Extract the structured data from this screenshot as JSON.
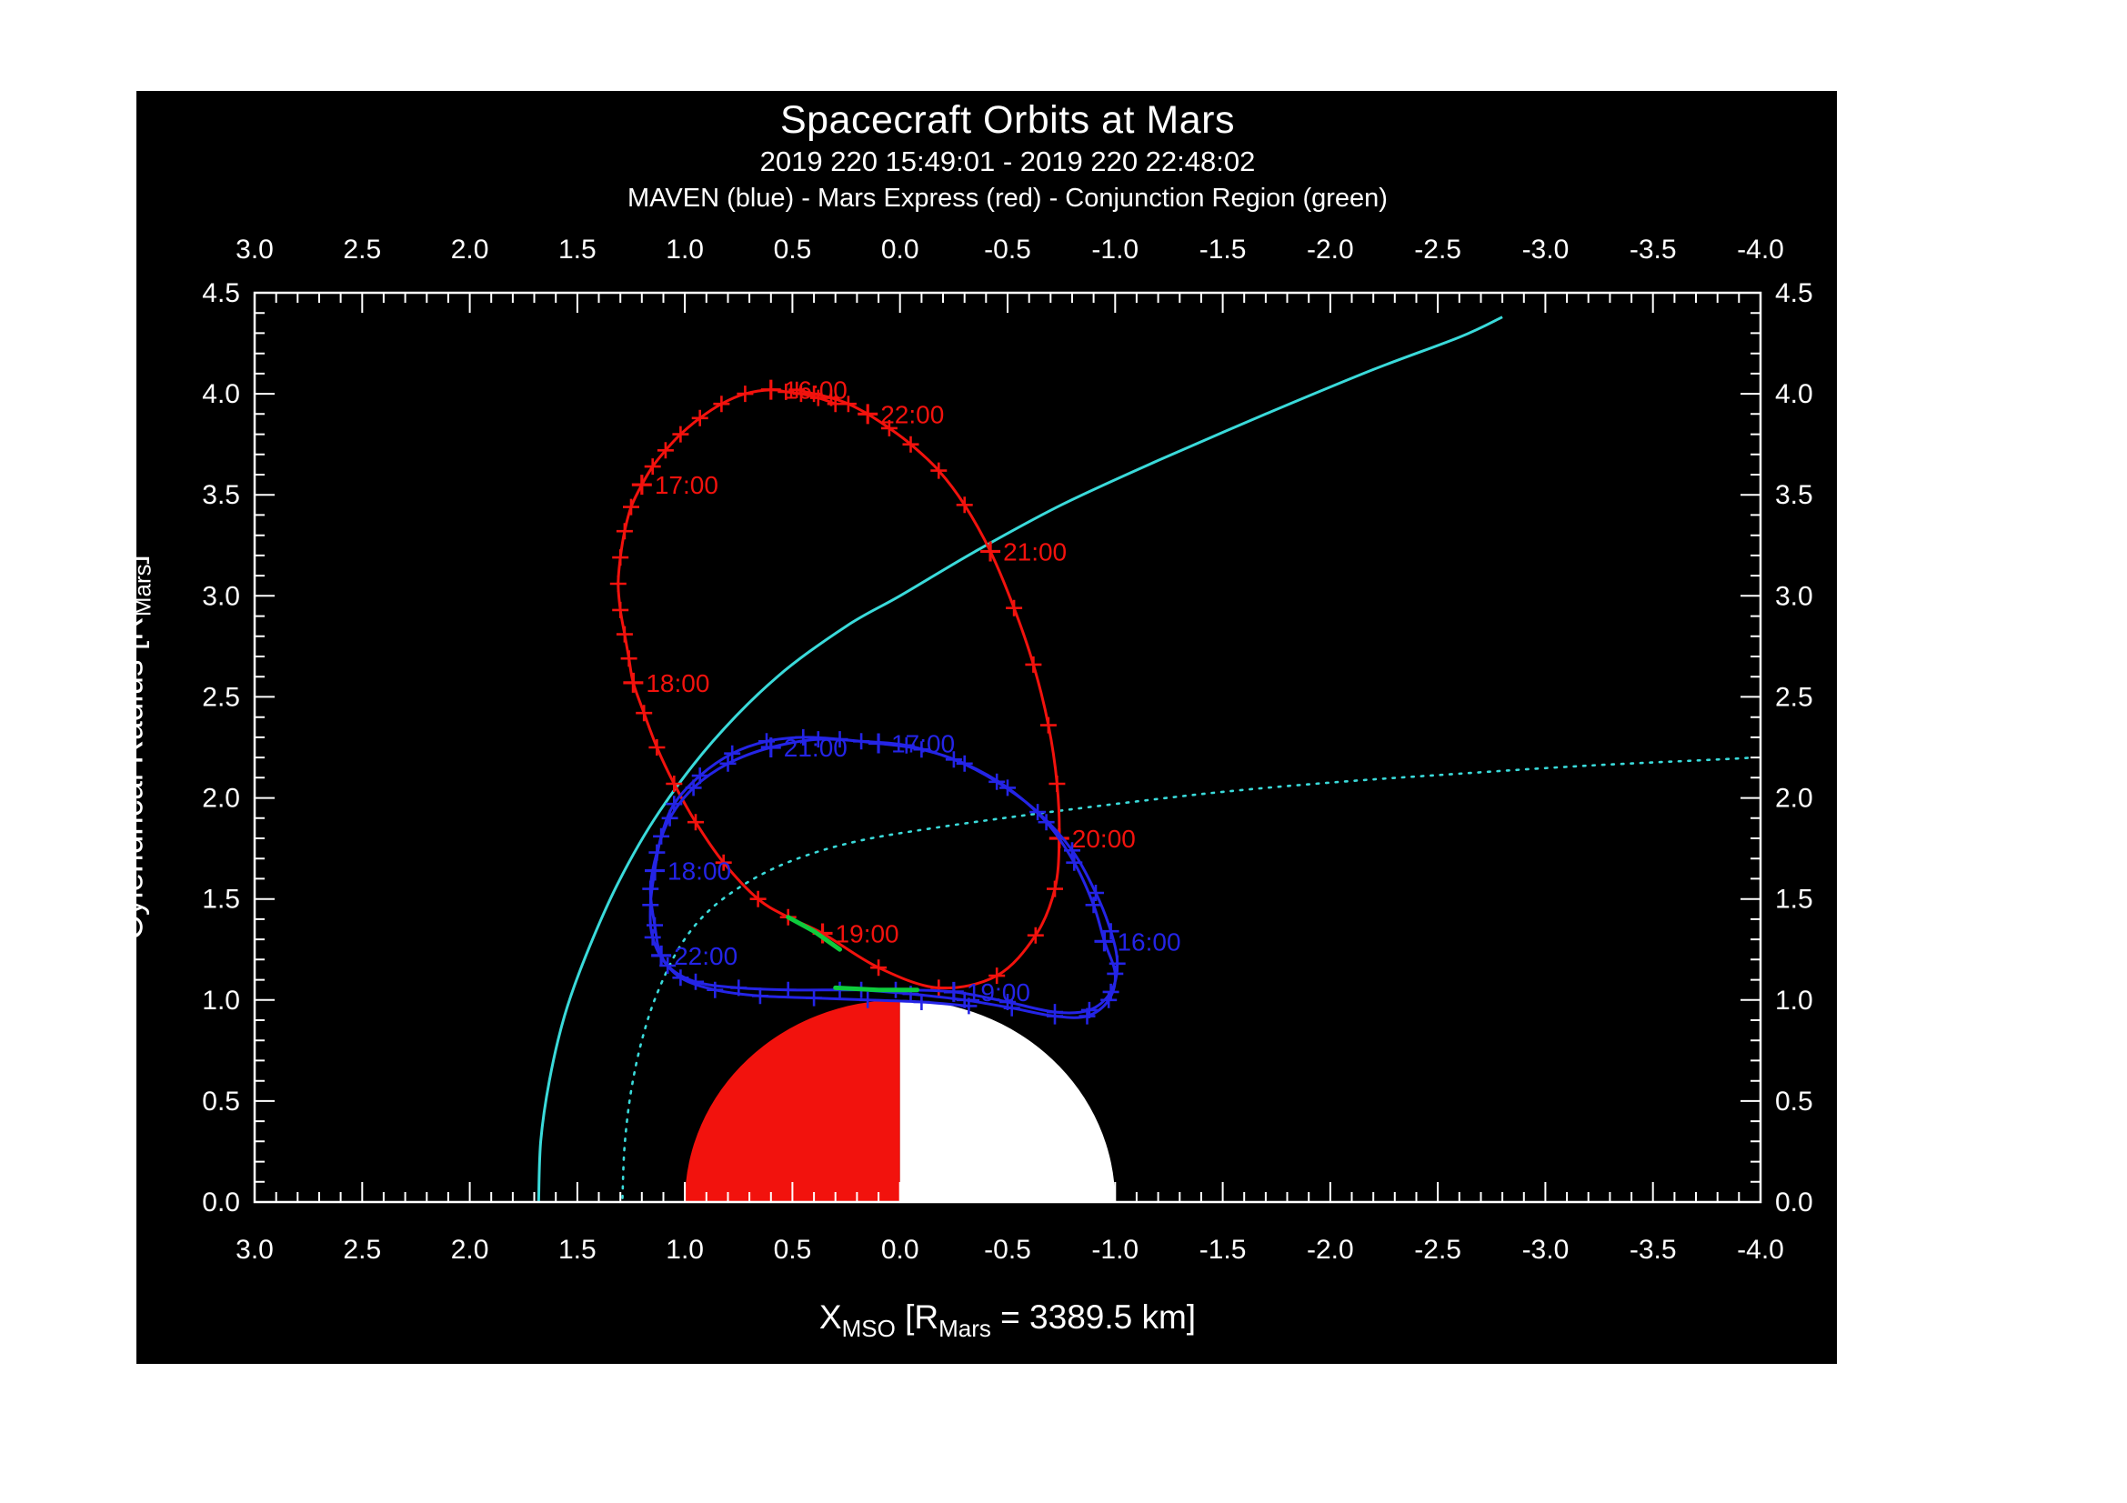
{
  "header": {
    "title": "Spacecraft Orbits at Mars",
    "subtitle": "2019 220 15:49:01 - 2019 220 22:48:02",
    "legend_line": "MAVEN (blue) - Mars Express (red) - Conjunction Region (green)"
  },
  "axis_titles": {
    "x_base": "X",
    "x_sub1": "MSO",
    "x_mid": " [R",
    "x_sub2": "Mars",
    "x_end": " = 3389.5 km]",
    "y_base": "Cylendrical Radius [R",
    "y_sub": "Mars",
    "y_end": "]"
  },
  "chart_data": {
    "type": "line",
    "title": "Spacecraft Orbits at Mars",
    "subtitle": "2019 220 15:49:01 - 2019 220 22:48:02",
    "legend": "MAVEN (blue) - Mars Express (red) - Conjunction Region (green)",
    "x_axis": {
      "label": "X_MSO [R_Mars = 3389.5 km]",
      "min": -4.0,
      "max": 3.0,
      "reversed": true,
      "major_tick_step": 0.5,
      "minor_tick_step": 0.1,
      "ticks": [
        "3.0",
        "2.5",
        "2.0",
        "1.5",
        "1.0",
        "0.5",
        "0.0",
        "-0.5",
        "-1.0",
        "-1.5",
        "-2.0",
        "-2.5",
        "-3.0",
        "-3.5",
        "-4.0"
      ]
    },
    "y_axis": {
      "label": "Cylendrical Radius [R_Mars]",
      "min": 0.0,
      "max": 4.5,
      "major_tick_step": 0.5,
      "minor_tick_step": 0.1,
      "ticks": [
        "0.0",
        "0.5",
        "1.0",
        "1.5",
        "2.0",
        "2.5",
        "3.0",
        "3.5",
        "4.0",
        "4.5"
      ]
    },
    "mars": {
      "center": [
        0,
        0
      ],
      "radius": 1.0,
      "dayside_color": "#f2120d",
      "nightside_color": "#ffffff"
    },
    "colors": {
      "maven": "#2424e6",
      "mars_express": "#f2120d",
      "model_curves": "#3adada",
      "conjunction": "#0ecb3c",
      "frame": "#ffffff",
      "background": "#000000"
    },
    "series": [
      {
        "id": "cyan-solid-curve",
        "label": "",
        "color": "#3adada",
        "style": "solid",
        "markers": "none",
        "points": [
          [
            1.68,
            0.0
          ],
          [
            1.67,
            0.3
          ],
          [
            1.63,
            0.6
          ],
          [
            1.56,
            0.92
          ],
          [
            1.46,
            1.22
          ],
          [
            1.31,
            1.58
          ],
          [
            1.12,
            1.93
          ],
          [
            0.87,
            2.28
          ],
          [
            0.57,
            2.6
          ],
          [
            0.25,
            2.85
          ],
          [
            0.0,
            3.0
          ],
          [
            -0.35,
            3.22
          ],
          [
            -0.75,
            3.45
          ],
          [
            -1.2,
            3.67
          ],
          [
            -1.7,
            3.9
          ],
          [
            -2.2,
            4.12
          ],
          [
            -2.6,
            4.28
          ],
          [
            -2.8,
            4.38
          ]
        ]
      },
      {
        "id": "cyan-dotted-curve",
        "label": "",
        "color": "#3adada",
        "style": "dotted",
        "markers": "none",
        "points": [
          [
            1.29,
            0.02
          ],
          [
            1.28,
            0.28
          ],
          [
            1.25,
            0.55
          ],
          [
            1.2,
            0.8
          ],
          [
            1.13,
            1.03
          ],
          [
            1.02,
            1.27
          ],
          [
            0.88,
            1.45
          ],
          [
            0.68,
            1.6
          ],
          [
            0.45,
            1.71
          ],
          [
            0.18,
            1.79
          ],
          [
            -0.15,
            1.85
          ],
          [
            -0.55,
            1.91
          ],
          [
            -1.0,
            1.97
          ],
          [
            -1.5,
            2.03
          ],
          [
            -2.05,
            2.08
          ],
          [
            -2.6,
            2.12
          ],
          [
            -3.2,
            2.16
          ],
          [
            -3.8,
            2.19
          ],
          [
            -3.97,
            2.2
          ]
        ]
      },
      {
        "id": "mars-express-orbit",
        "label": "Mars Express",
        "color": "#f2120d",
        "style": "solid",
        "markers": "plus",
        "points": [
          [
            0.3,
            3.95
          ],
          [
            0.38,
            3.98
          ],
          [
            0.46,
            4.0
          ],
          [
            0.53,
            4.01
          ],
          [
            0.6,
            4.02
          ],
          [
            0.72,
            4.0
          ],
          [
            0.83,
            3.95
          ],
          [
            0.93,
            3.88
          ],
          [
            1.02,
            3.8
          ],
          [
            1.09,
            3.72
          ],
          [
            1.15,
            3.64
          ],
          [
            1.2,
            3.55
          ],
          [
            1.25,
            3.44
          ],
          [
            1.28,
            3.32
          ],
          [
            1.3,
            3.19
          ],
          [
            1.31,
            3.06
          ],
          [
            1.3,
            2.93
          ],
          [
            1.28,
            2.81
          ],
          [
            1.26,
            2.69
          ],
          [
            1.24,
            2.57
          ],
          [
            1.19,
            2.42
          ],
          [
            1.13,
            2.25
          ],
          [
            1.05,
            2.07
          ],
          [
            0.95,
            1.88
          ],
          [
            0.82,
            1.68
          ],
          [
            0.66,
            1.5
          ],
          [
            0.52,
            1.41
          ],
          [
            0.36,
            1.33
          ],
          [
            0.1,
            1.16
          ],
          [
            -0.18,
            1.06
          ],
          [
            -0.45,
            1.12
          ],
          [
            -0.63,
            1.32
          ],
          [
            -0.72,
            1.55
          ],
          [
            -0.74,
            1.8
          ],
          [
            -0.73,
            2.07
          ],
          [
            -0.69,
            2.36
          ],
          [
            -0.62,
            2.66
          ],
          [
            -0.53,
            2.94
          ],
          [
            -0.42,
            3.22
          ],
          [
            -0.3,
            3.45
          ],
          [
            -0.18,
            3.62
          ],
          [
            -0.05,
            3.75
          ],
          [
            0.05,
            3.83
          ],
          [
            0.15,
            3.9
          ],
          [
            0.24,
            3.95
          ],
          [
            0.32,
            3.98
          ],
          [
            0.4,
            4.0
          ],
          [
            0.48,
            4.02
          ]
        ],
        "hour_labels": [
          {
            "t": "16:00",
            "x": 0.6,
            "y": 4.02
          },
          {
            "t": "17:00",
            "x": 1.2,
            "y": 3.55
          },
          {
            "t": "18:00",
            "x": 1.24,
            "y": 2.57
          },
          {
            "t": "19:00",
            "x": 0.36,
            "y": 1.33
          },
          {
            "t": "20:00",
            "x": -0.74,
            "y": 1.8
          },
          {
            "t": "21:00",
            "x": -0.42,
            "y": 3.22
          },
          {
            "t": "22:00",
            "x": 0.15,
            "y": 3.9
          }
        ]
      },
      {
        "id": "maven-orbit",
        "label": "MAVEN",
        "color": "#2424e6",
        "style": "solid",
        "markers": "plus",
        "points": [
          [
            0.18,
            1.05
          ],
          [
            -0.05,
            1.03
          ],
          [
            -0.3,
            1.0
          ],
          [
            -0.52,
            0.96
          ],
          [
            -0.72,
            0.92
          ],
          [
            -0.87,
            0.92
          ],
          [
            -0.97,
            1.0
          ],
          [
            -1.0,
            1.13
          ],
          [
            -0.95,
            1.29
          ],
          [
            -0.9,
            1.47
          ],
          [
            -0.81,
            1.68
          ],
          [
            -0.68,
            1.88
          ],
          [
            -0.5,
            2.05
          ],
          [
            -0.3,
            2.17
          ],
          [
            -0.1,
            2.24
          ],
          [
            0.1,
            2.27
          ],
          [
            0.28,
            2.29
          ],
          [
            0.45,
            2.3
          ],
          [
            0.62,
            2.28
          ],
          [
            0.78,
            2.22
          ],
          [
            0.93,
            2.11
          ],
          [
            1.05,
            1.97
          ],
          [
            1.11,
            1.81
          ],
          [
            1.14,
            1.64
          ],
          [
            1.16,
            1.47
          ],
          [
            1.15,
            1.31
          ],
          [
            1.08,
            1.17
          ],
          [
            0.95,
            1.09
          ],
          [
            0.75,
            1.06
          ],
          [
            0.52,
            1.05
          ],
          [
            0.28,
            1.05
          ],
          [
            0.02,
            1.05
          ],
          [
            -0.25,
            1.04
          ],
          [
            -0.5,
            0.99
          ],
          [
            -0.72,
            0.94
          ],
          [
            -0.88,
            0.95
          ],
          [
            -0.98,
            1.04
          ],
          [
            -1.01,
            1.18
          ],
          [
            -0.98,
            1.34
          ],
          [
            -0.91,
            1.53
          ],
          [
            -0.8,
            1.74
          ],
          [
            -0.64,
            1.93
          ],
          [
            -0.45,
            2.08
          ],
          [
            -0.25,
            2.19
          ],
          [
            -0.03,
            2.26
          ],
          [
            0.18,
            2.28
          ],
          [
            0.38,
            2.29
          ],
          [
            0.6,
            2.25
          ],
          [
            0.8,
            2.17
          ],
          [
            0.96,
            2.05
          ],
          [
            1.07,
            1.9
          ],
          [
            1.13,
            1.73
          ],
          [
            1.16,
            1.55
          ],
          [
            1.14,
            1.37
          ],
          [
            1.11,
            1.22
          ],
          [
            1.02,
            1.11
          ],
          [
            0.86,
            1.05
          ],
          [
            0.65,
            1.02
          ],
          [
            0.4,
            1.01
          ],
          [
            0.15,
            1.0
          ],
          [
            -0.1,
            0.99
          ],
          [
            -0.32,
            0.97
          ]
        ],
        "hour_labels": [
          {
            "t": "16:00",
            "x": -0.95,
            "y": 1.29
          },
          {
            "t": "17:00",
            "x": 0.1,
            "y": 2.27
          },
          {
            "t": "18:00",
            "x": 1.14,
            "y": 1.64
          },
          {
            "t": "19:00",
            "x": -0.25,
            "y": 1.04
          },
          {
            "t": "21:00",
            "x": 0.6,
            "y": 2.25
          },
          {
            "t": "22:00",
            "x": 1.11,
            "y": 1.22
          }
        ]
      },
      {
        "id": "conjunction-region",
        "label": "Conjunction Region",
        "color": "#0ecb3c",
        "style": "solid",
        "width": 5,
        "segments": [
          [
            [
              0.52,
              1.41
            ],
            [
              0.4,
              1.34
            ],
            [
              0.28,
              1.25
            ]
          ],
          [
            [
              0.3,
              1.06
            ],
            [
              0.1,
              1.05
            ],
            [
              -0.08,
              1.05
            ]
          ]
        ]
      }
    ]
  }
}
